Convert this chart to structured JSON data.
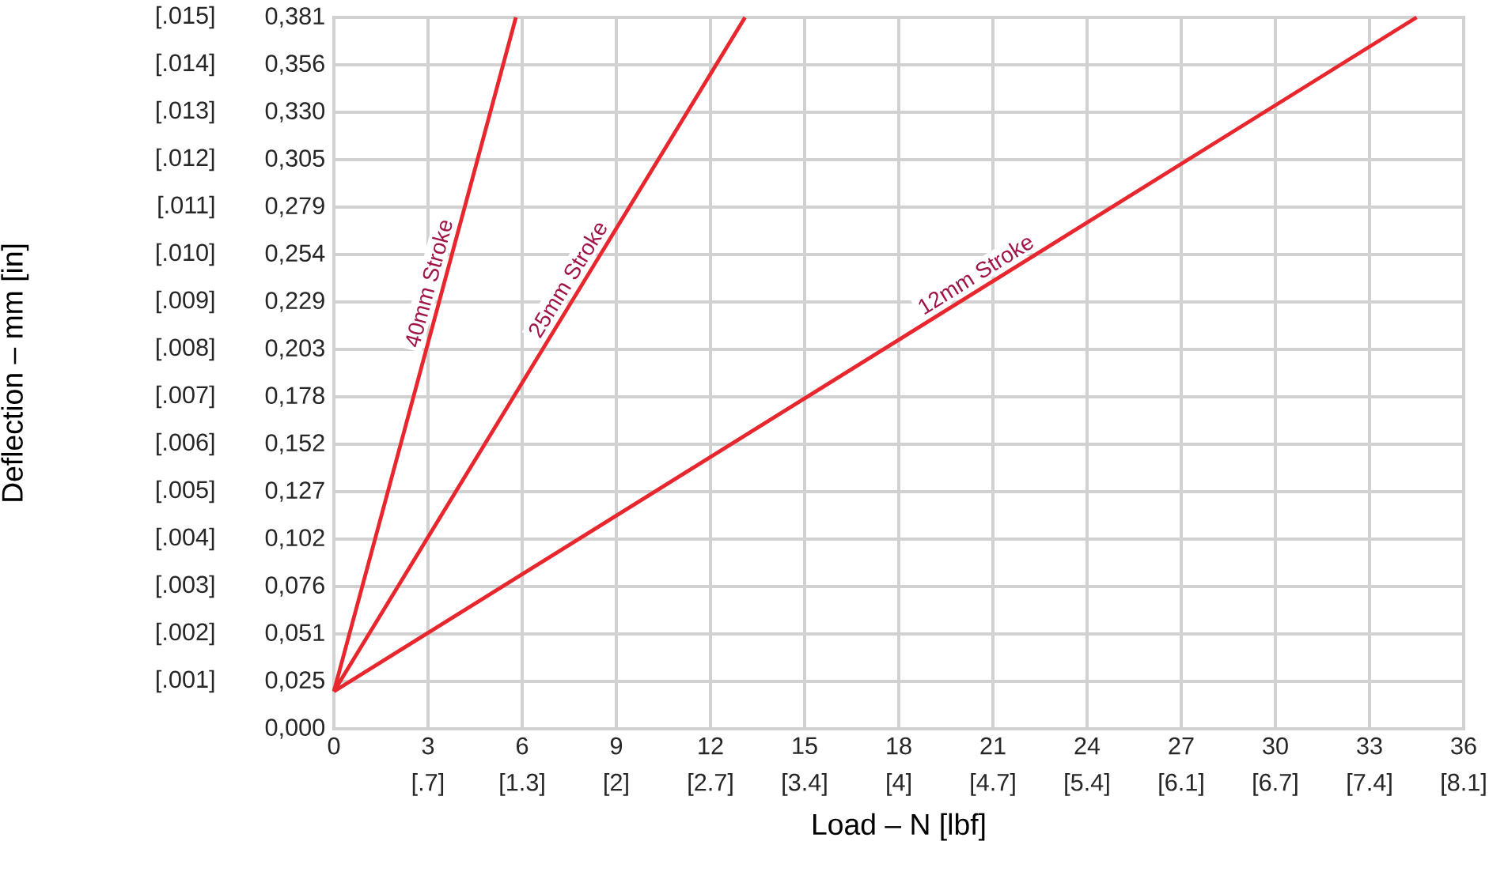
{
  "chart_data": {
    "type": "line",
    "xlabel": "Load – N [lbf]",
    "y2label": "Deflection – mm [in]",
    "xlim": [
      0,
      36
    ],
    "xticks": [
      0,
      3,
      6,
      9,
      12,
      15,
      18,
      21,
      24,
      27,
      30,
      33,
      36
    ],
    "ylim": [
      0,
      0.381
    ],
    "yticks": [
      {
        "value": 0,
        "label": "0,000"
      },
      {
        "value": 0.0254,
        "label": "0,025"
      },
      {
        "value": 0.0508,
        "label": "0,051"
      },
      {
        "value": 0.0762,
        "label": "0,076"
      },
      {
        "value": 0.1016,
        "label": "0,102"
      },
      {
        "value": 0.127,
        "label": "0,127"
      },
      {
        "value": 0.1524,
        "label": "0,152"
      },
      {
        "value": 0.1778,
        "label": "0,178"
      },
      {
        "value": 0.2032,
        "label": "0,203"
      },
      {
        "value": 0.2286,
        "label": "0,229"
      },
      {
        "value": 0.254,
        "label": "0,254"
      },
      {
        "value": 0.2794,
        "label": "0,279"
      },
      {
        "value": 0.3048,
        "label": "0,305"
      },
      {
        "value": 0.3302,
        "label": "0,330"
      },
      {
        "value": 0.3556,
        "label": "0,356"
      },
      {
        "value": 0.381,
        "label": "0,381"
      }
    ],
    "y2lim": [
      0,
      0.015
    ],
    "y2ticks": [
      {
        "value": 0.001,
        "label": "[.001]"
      },
      {
        "value": 0.002,
        "label": "[.002]"
      },
      {
        "value": 0.003,
        "label": "[.003]"
      },
      {
        "value": 0.004,
        "label": "[.004]"
      },
      {
        "value": 0.005,
        "label": "[.005]"
      },
      {
        "value": 0.006,
        "label": "[.006]"
      },
      {
        "value": 0.007,
        "label": "[.007]"
      },
      {
        "value": 0.008,
        "label": "[.008]"
      },
      {
        "value": 0.009,
        "label": "[.009]"
      },
      {
        "value": 0.01,
        "label": "[.010]"
      },
      {
        "value": 0.011,
        "label": "[.011]"
      },
      {
        "value": 0.012,
        "label": "[.012]"
      },
      {
        "value": 0.013,
        "label": "[.013]"
      },
      {
        "value": 0.014,
        "label": "[.014]"
      },
      {
        "value": 0.015,
        "label": "[.015]"
      }
    ],
    "x2lim": [
      0,
      8.093
    ],
    "x2ticks": [
      {
        "value": 0.674,
        "label": "[.7]"
      },
      {
        "value": 1.349,
        "label": "[1.3]"
      },
      {
        "value": 2.023,
        "label": "[2]"
      },
      {
        "value": 2.698,
        "label": "[2.7]"
      },
      {
        "value": 3.372,
        "label": "[3.4]"
      },
      {
        "value": 4.047,
        "label": "[4]"
      },
      {
        "value": 4.721,
        "label": "[4.7]"
      },
      {
        "value": 5.395,
        "label": "[5.4]"
      },
      {
        "value": 6.07,
        "label": "[6.1]"
      },
      {
        "value": 6.744,
        "label": "[6.7]"
      },
      {
        "value": 7.419,
        "label": "[7.4]"
      },
      {
        "value": 8.093,
        "label": "[8.1]"
      }
    ],
    "grid": true,
    "marker": "none",
    "line_style": "solid",
    "series": [
      {
        "name": "40mm Stroke",
        "color": "#e8262d",
        "x": [
          0,
          5.8
        ],
        "values": [
          0.02,
          0.381
        ]
      },
      {
        "name": "25mm Stroke",
        "color": "#e8262d",
        "x": [
          0,
          13.1
        ],
        "values": [
          0.02,
          0.381
        ]
      },
      {
        "name": "12mm Stroke",
        "color": "#e8262d",
        "x": [
          0,
          34.5
        ],
        "values": [
          0.02,
          0.381
        ]
      }
    ]
  }
}
